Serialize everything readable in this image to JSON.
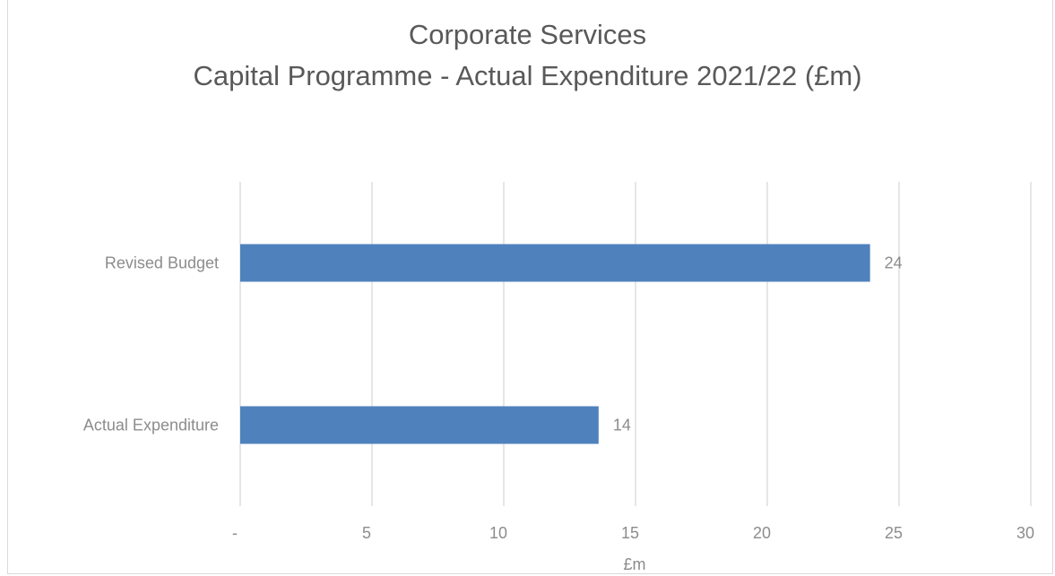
{
  "chart_data": {
    "type": "bar",
    "orientation": "horizontal",
    "title": "Corporate Services",
    "subtitle": "Capital Programme - Actual Expenditure 2021/22 (£m)",
    "xlabel": "£m",
    "ylabel": "",
    "categories": [
      "Revised Budget",
      "Actual Expenditure"
    ],
    "values": [
      23.9,
      13.6
    ],
    "data_labels": [
      "24",
      "14"
    ],
    "xlim": [
      0,
      30
    ],
    "x_ticks": [
      0,
      5,
      10,
      15,
      20,
      25,
      30
    ],
    "x_tick_labels": [
      "-",
      "5",
      "10",
      "15",
      "20",
      "25",
      "30"
    ],
    "grid": "vertical",
    "legend": "none",
    "bar_color": "#4f81bd",
    "grid_color": "#d9d9d9"
  }
}
